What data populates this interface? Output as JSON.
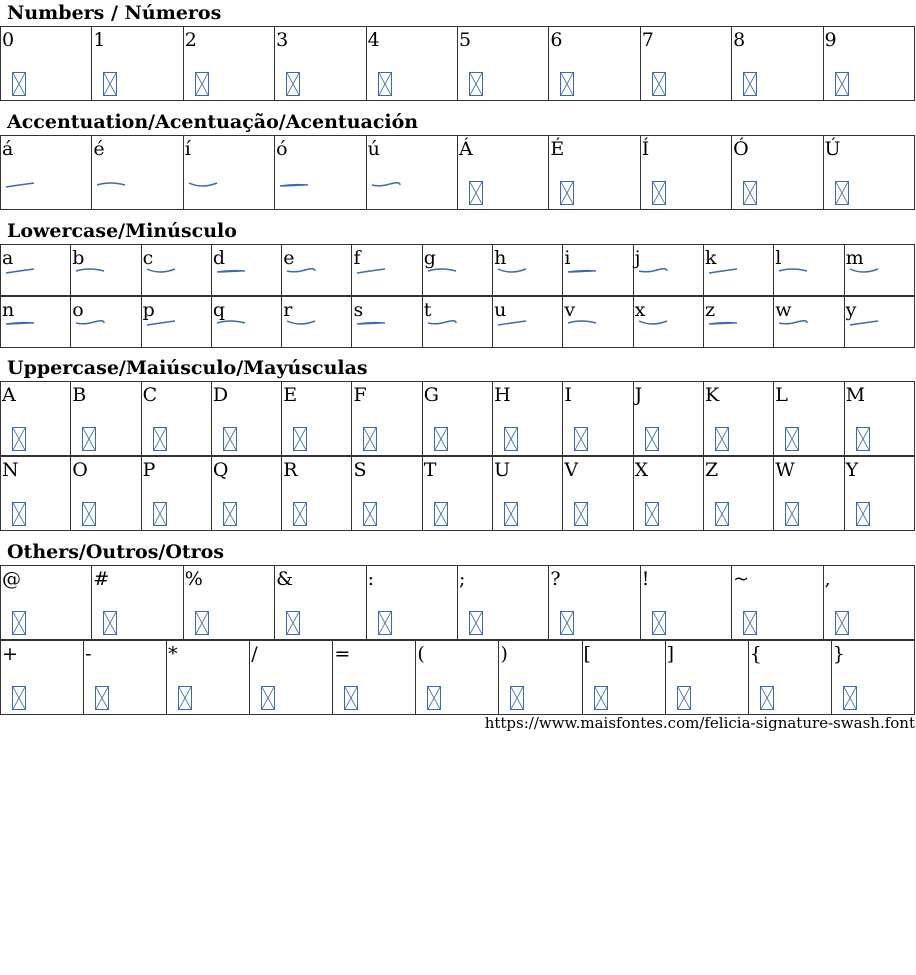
{
  "sections": [
    {
      "title": "Numbers / Números",
      "rows": [
        [
          "0",
          "1",
          "2",
          "3",
          "4",
          "5",
          "6",
          "7",
          "8",
          "9"
        ]
      ],
      "glyph": "box"
    },
    {
      "title": "Accentuation/Acentuação/Acentuación",
      "rows": [
        [
          "á",
          "é",
          "í",
          "ó",
          "ú",
          "Á",
          "É",
          "Í",
          "Ó",
          "Ú"
        ]
      ],
      "glyph": "mixed",
      "swash_chars": [
        "á",
        "é",
        "í",
        "ó",
        "ú"
      ]
    },
    {
      "title": "Lowercase/Minúsculo",
      "rows": [
        [
          "a",
          "b",
          "c",
          "d",
          "e",
          "f",
          "g",
          "h",
          "i",
          "j",
          "k",
          "l",
          "m"
        ],
        [
          "n",
          "o",
          "p",
          "q",
          "r",
          "s",
          "t",
          "u",
          "v",
          "x",
          "z",
          "w",
          "y"
        ]
      ],
      "glyph": "swash"
    },
    {
      "title": "Uppercase/Maiúsculo/Mayúsculas",
      "rows": [
        [
          "A",
          "B",
          "C",
          "D",
          "E",
          "F",
          "G",
          "H",
          "I",
          "J",
          "K",
          "L",
          "M"
        ],
        [
          "N",
          "O",
          "P",
          "Q",
          "R",
          "S",
          "T",
          "U",
          "V",
          "X",
          "Z",
          "W",
          "Y"
        ]
      ],
      "glyph": "box"
    },
    {
      "title": "Others/Outros/Otros",
      "rows": [
        [
          "@",
          "#",
          "%",
          "&",
          ":",
          ";",
          "?",
          "!",
          "~",
          ","
        ],
        [
          "+",
          "-",
          "*",
          "/",
          "=",
          "(",
          ")",
          "[",
          "]",
          "{",
          "}"
        ]
      ],
      "glyph": "box"
    }
  ],
  "footer": {
    "url": "https://www.maisfontes.com/felicia-signature-swash.font"
  },
  "colors": {
    "glyph": "#3a6ab0",
    "border": "#333333"
  }
}
